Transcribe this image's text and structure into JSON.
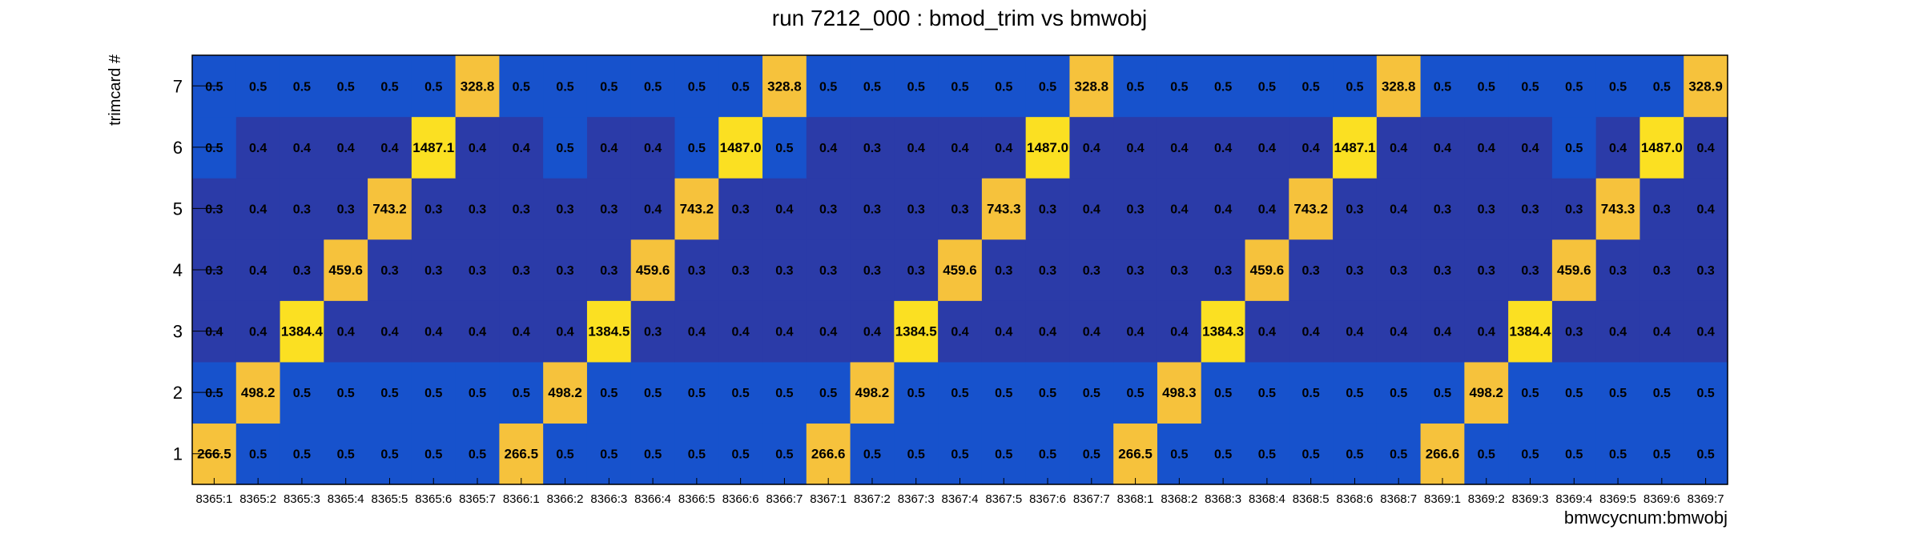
{
  "chart_data": {
    "type": "heatmap",
    "title": "run 7212_000 : bmod_trim vs bmwobj",
    "xlabel": "bmwcycnum:bmwobj",
    "ylabel": "trimcard #",
    "x_categories": [
      "8365:1",
      "8365:2",
      "8365:3",
      "8365:4",
      "8365:5",
      "8365:6",
      "8365:7",
      "8366:1",
      "8366:2",
      "8366:3",
      "8366:4",
      "8366:5",
      "8366:6",
      "8366:7",
      "8367:1",
      "8367:2",
      "8367:3",
      "8367:4",
      "8367:5",
      "8367:6",
      "8367:7",
      "8368:1",
      "8368:2",
      "8368:3",
      "8368:4",
      "8368:5",
      "8368:6",
      "8368:7",
      "8369:1",
      "8369:2",
      "8369:3",
      "8369:4",
      "8369:5",
      "8369:6",
      "8369:7"
    ],
    "y_categories": [
      "1",
      "2",
      "3",
      "4",
      "5",
      "6",
      "7"
    ],
    "rows": [
      [
        "266.5",
        "0.5",
        "0.5",
        "0.5",
        "0.5",
        "0.5",
        "0.5",
        "266.5",
        "0.5",
        "0.5",
        "0.5",
        "0.5",
        "0.5",
        "0.5",
        "266.6",
        "0.5",
        "0.5",
        "0.5",
        "0.5",
        "0.5",
        "0.5",
        "266.5",
        "0.5",
        "0.5",
        "0.5",
        "0.5",
        "0.5",
        "0.5",
        "266.6",
        "0.5",
        "0.5",
        "0.5",
        "0.5",
        "0.5",
        "0.5"
      ],
      [
        "0.5",
        "498.2",
        "0.5",
        "0.5",
        "0.5",
        "0.5",
        "0.5",
        "0.5",
        "498.2",
        "0.5",
        "0.5",
        "0.5",
        "0.5",
        "0.5",
        "0.5",
        "498.2",
        "0.5",
        "0.5",
        "0.5",
        "0.5",
        "0.5",
        "0.5",
        "498.3",
        "0.5",
        "0.5",
        "0.5",
        "0.5",
        "0.5",
        "0.5",
        "498.2",
        "0.5",
        "0.5",
        "0.5",
        "0.5",
        "0.5"
      ],
      [
        "0.4",
        "0.4",
        "1384.4",
        "0.4",
        "0.4",
        "0.4",
        "0.4",
        "0.4",
        "0.4",
        "1384.5",
        "0.3",
        "0.4",
        "0.4",
        "0.4",
        "0.4",
        "0.4",
        "1384.5",
        "0.4",
        "0.4",
        "0.4",
        "0.4",
        "0.4",
        "0.4",
        "1384.3",
        "0.4",
        "0.4",
        "0.4",
        "0.4",
        "0.4",
        "0.4",
        "1384.4",
        "0.3",
        "0.4",
        "0.4",
        "0.4"
      ],
      [
        "0.3",
        "0.4",
        "0.3",
        "459.6",
        "0.3",
        "0.3",
        "0.3",
        "0.3",
        "0.3",
        "0.3",
        "459.6",
        "0.3",
        "0.3",
        "0.3",
        "0.3",
        "0.3",
        "0.3",
        "459.6",
        "0.3",
        "0.3",
        "0.3",
        "0.3",
        "0.3",
        "0.3",
        "459.6",
        "0.3",
        "0.3",
        "0.3",
        "0.3",
        "0.3",
        "0.3",
        "459.6",
        "0.3",
        "0.3",
        "0.3"
      ],
      [
        "0.3",
        "0.4",
        "0.3",
        "0.3",
        "743.2",
        "0.3",
        "0.3",
        "0.3",
        "0.3",
        "0.3",
        "0.4",
        "743.2",
        "0.3",
        "0.4",
        "0.3",
        "0.3",
        "0.3",
        "0.3",
        "743.3",
        "0.3",
        "0.4",
        "0.3",
        "0.4",
        "0.4",
        "0.4",
        "743.2",
        "0.3",
        "0.4",
        "0.3",
        "0.3",
        "0.3",
        "0.3",
        "743.3",
        "0.3",
        "0.4"
      ],
      [
        "0.5",
        "0.4",
        "0.4",
        "0.4",
        "0.4",
        "1487.1",
        "0.4",
        "0.4",
        "0.5",
        "0.4",
        "0.4",
        "0.5",
        "1487.0",
        "0.5",
        "0.4",
        "0.3",
        "0.4",
        "0.4",
        "0.4",
        "1487.0",
        "0.4",
        "0.4",
        "0.4",
        "0.4",
        "0.4",
        "0.4",
        "1487.1",
        "0.4",
        "0.4",
        "0.4",
        "0.4",
        "0.5",
        "0.4",
        "1487.0",
        "0.4"
      ],
      [
        "0.5",
        "0.5",
        "0.5",
        "0.5",
        "0.5",
        "0.5",
        "328.8",
        "0.5",
        "0.5",
        "0.5",
        "0.5",
        "0.5",
        "0.5",
        "328.8",
        "0.5",
        "0.5",
        "0.5",
        "0.5",
        "0.5",
        "0.5",
        "328.8",
        "0.5",
        "0.5",
        "0.5",
        "0.5",
        "0.5",
        "0.5",
        "328.8",
        "0.5",
        "0.5",
        "0.5",
        "0.5",
        "0.5",
        "0.5",
        "328.9"
      ]
    ],
    "colors": {
      "background_row_5": "#1752CC",
      "background_row_4": "#2B3BA8",
      "background_row_3": "#2B3BA8",
      "background_row_03": "#2B3BA8",
      "hot_yellow": "#FBE022",
      "warm_yellow": "#F6C23C",
      "text": "#000000",
      "frame": "#000000"
    }
  }
}
